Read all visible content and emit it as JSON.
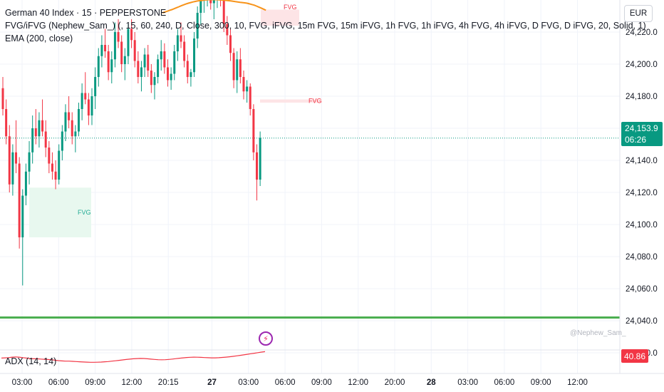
{
  "legend": {
    "symbol": "German 40 Index · 15 · PEPPERSTONE",
    "indicator1": "FVG/iFVG (Nephew_Sam_) (, 15, 60, 240, D, Close, 300, 10, FVG, iFVG, 15m FVG, 15m iFVG, 1h FVG, 1h iFVG, 4h FVG, 4h iFVG, D FVG, D iFVG, 20, Solid, 1)",
    "indicator2": "EMA (200, close)"
  },
  "currency": "EUR",
  "price_tag": {
    "price": "24,153.9",
    "countdown": "06:26"
  },
  "adx_label": "ADX (14, 14)",
  "adx_value": "40.86",
  "watermark": "@Nephew_Sam_",
  "icons": {
    "alert": "bolt-icon"
  },
  "colors": {
    "up": "#089981",
    "down": "#f23645",
    "ema": "#f7931a",
    "support": "#4caf50",
    "adx": "#f23645",
    "fvg_bull": "#e8f8ef",
    "fvg_bear": "#fde4e6"
  },
  "chart_data": {
    "type": "candlestick",
    "y_ticks": [
      "24,220.0",
      "24,200.0",
      "24,180.0",
      "24,160.0",
      "24,140.0",
      "24,120.0",
      "24,100.0",
      "24,080.0",
      "24,060.0",
      "24,040.0",
      "24,020.0"
    ],
    "x_ticks": [
      "03:00",
      "06:00",
      "09:00",
      "12:00",
      "20:15",
      "27",
      "03:00",
      "06:00",
      "09:00",
      "12:00",
      "20:00",
      "28",
      "03:00",
      "06:00",
      "09:00",
      "12:00"
    ],
    "y_range": [
      24005,
      24230
    ],
    "support_level": 24042,
    "last_price": 24153.9,
    "fvg_zones": [
      {
        "label": "FVG",
        "type": "bull",
        "top": 24123,
        "bottom": 24092
      },
      {
        "label": "FVG",
        "type": "bear",
        "top": 24178,
        "bottom": 24176
      },
      {
        "label": "FVG",
        "type": "bear",
        "top": 24234,
        "bottom": 24224
      }
    ],
    "candles_ohlc": [
      [
        24185,
        24192,
        24168,
        24172
      ],
      [
        24172,
        24178,
        24150,
        24155
      ],
      [
        24155,
        24162,
        24120,
        24125
      ],
      [
        24125,
        24150,
        24118,
        24145
      ],
      [
        24145,
        24165,
        24132,
        24138
      ],
      [
        24138,
        24142,
        24085,
        24092
      ],
      [
        24092,
        24122,
        24062,
        24118
      ],
      [
        24118,
        24138,
        24112,
        24133
      ],
      [
        24133,
        24152,
        24125,
        24145
      ],
      [
        24145,
        24168,
        24138,
        24160
      ],
      [
        24160,
        24172,
        24150,
        24155
      ],
      [
        24155,
        24170,
        24148,
        24165
      ],
      [
        24165,
        24178,
        24155,
        24158
      ],
      [
        24158,
        24165,
        24142,
        24148
      ],
      [
        24148,
        24152,
        24132,
        24138
      ],
      [
        24138,
        24145,
        24128,
        24133
      ],
      [
        24133,
        24140,
        24122,
        24128
      ],
      [
        24128,
        24150,
        24125,
        24146
      ],
      [
        24146,
        24162,
        24140,
        24158
      ],
      [
        24158,
        24175,
        24152,
        24170
      ],
      [
        24170,
        24180,
        24160,
        24165
      ],
      [
        24165,
        24170,
        24150,
        24155
      ],
      [
        24155,
        24162,
        24145,
        24158
      ],
      [
        24158,
        24176,
        24155,
        24172
      ],
      [
        24172,
        24188,
        24165,
        24182
      ],
      [
        24182,
        24195,
        24175,
        24178
      ],
      [
        24178,
        24182,
        24162,
        24168
      ],
      [
        24168,
        24185,
        24162,
        24180
      ],
      [
        24180,
        24198,
        24172,
        24192
      ],
      [
        24192,
        24210,
        24186,
        24205
      ],
      [
        24205,
        24218,
        24198,
        24212
      ],
      [
        24212,
        24222,
        24204,
        24208
      ],
      [
        24208,
        24212,
        24190,
        24195
      ],
      [
        24195,
        24208,
        24188,
        24203
      ],
      [
        24203,
        24226,
        24198,
        24220
      ],
      [
        24220,
        24228,
        24210,
        24214
      ],
      [
        24214,
        24218,
        24195,
        24200
      ],
      [
        24200,
        24210,
        24190,
        24205
      ],
      [
        24205,
        24225,
        24200,
        24222
      ],
      [
        24222,
        24228,
        24210,
        24215
      ],
      [
        24215,
        24220,
        24198,
        24202
      ],
      [
        24202,
        24208,
        24188,
        24192
      ],
      [
        24192,
        24202,
        24183,
        24198
      ],
      [
        24198,
        24210,
        24192,
        24206
      ],
      [
        24206,
        24212,
        24192,
        24196
      ],
      [
        24196,
        24200,
        24182,
        24187
      ],
      [
        24187,
        24195,
        24178,
        24192
      ],
      [
        24192,
        24206,
        24188,
        24203
      ],
      [
        24203,
        24215,
        24196,
        24208
      ],
      [
        24208,
        24213,
        24194,
        24198
      ],
      [
        24198,
        24203,
        24186,
        24190
      ],
      [
        24190,
        24198,
        24184,
        24194
      ],
      [
        24194,
        24212,
        24190,
        24208
      ],
      [
        24208,
        24222,
        24202,
        24218
      ],
      [
        24218,
        24226,
        24210,
        24214
      ],
      [
        24214,
        24218,
        24198,
        24202
      ],
      [
        24202,
        24206,
        24188,
        24192
      ],
      [
        24192,
        24197,
        24186,
        24195
      ],
      [
        24195,
        24220,
        24192,
        24216
      ],
      [
        24216,
        24236,
        24210,
        24232
      ],
      [
        24232,
        24245,
        24224,
        24240
      ],
      [
        24240,
        24248,
        24232,
        24245
      ],
      [
        24245,
        24252,
        24236,
        24248
      ],
      [
        24248,
        24252,
        24234,
        24238
      ],
      [
        24238,
        24245,
        24228,
        24242
      ],
      [
        24242,
        24250,
        24235,
        24246
      ],
      [
        24246,
        24250,
        24236,
        24240
      ],
      [
        24240,
        24244,
        24220,
        24225
      ],
      [
        24225,
        24230,
        24212,
        24218
      ],
      [
        24218,
        24222,
        24202,
        24207
      ],
      [
        24207,
        24210,
        24185,
        24190
      ],
      [
        24190,
        24208,
        24182,
        24203
      ],
      [
        24203,
        24210,
        24188,
        24192
      ],
      [
        24192,
        24196,
        24178,
        24183
      ],
      [
        24183,
        24190,
        24176,
        24186
      ],
      [
        24186,
        24188,
        24168,
        24172
      ],
      [
        24172,
        24175,
        24140,
        24145
      ],
      [
        24145,
        24150,
        24115,
        24128
      ],
      [
        24128,
        24158,
        24124,
        24154
      ]
    ],
    "ema_values": [
      24232,
      24232.5,
      24233,
      24233.5,
      24234,
      24234.6,
      24235.2,
      24235.8,
      24236.4,
      24237,
      24237.5,
      24238,
      24238.4,
      24238.8,
      24239.1,
      24239.4,
      24239.6,
      24239.8,
      24240,
      24240.1,
      24240.2,
      24240.2,
      24240.2,
      24240.2,
      24240.1,
      24240,
      24239.9,
      24239.8,
      24239.6,
      24239.4,
      24239.2,
      24239,
      24238.8,
      24238.6,
      24238.4,
      24238.2,
      24238,
      24237.6,
      24237.2,
      24236.8,
      24236.2,
      24235.6,
      24235,
      24234.3,
      24233.6
    ],
    "adx_values": [
      27,
      27.5,
      28,
      29,
      29.5,
      29,
      28,
      27,
      26,
      25.5,
      25.5,
      25,
      24.5,
      24,
      23.5,
      22.5,
      21.5,
      21,
      20.5,
      20.5,
      20,
      19.5,
      19,
      18.6,
      18.3,
      18,
      18,
      18.2,
      18.5,
      19,
      19.6,
      20.4,
      21.3,
      22.2,
      23.1,
      24,
      24.8,
      25.5,
      26,
      26.3,
      26.2,
      25.6,
      24.8,
      24.1,
      23.6,
      23.4,
      23.6,
      24.2,
      25,
      25.9,
      26.8,
      27.6,
      28.3,
      28.8,
      29,
      28.9,
      28.6,
      28.2,
      27.8,
      27.6,
      27.6,
      27.9,
      28.4,
      29.1,
      29.9,
      30.8,
      31.8,
      32.9,
      34,
      35.2,
      36.4,
      37.6,
      38.8,
      40,
      40.86
    ]
  }
}
